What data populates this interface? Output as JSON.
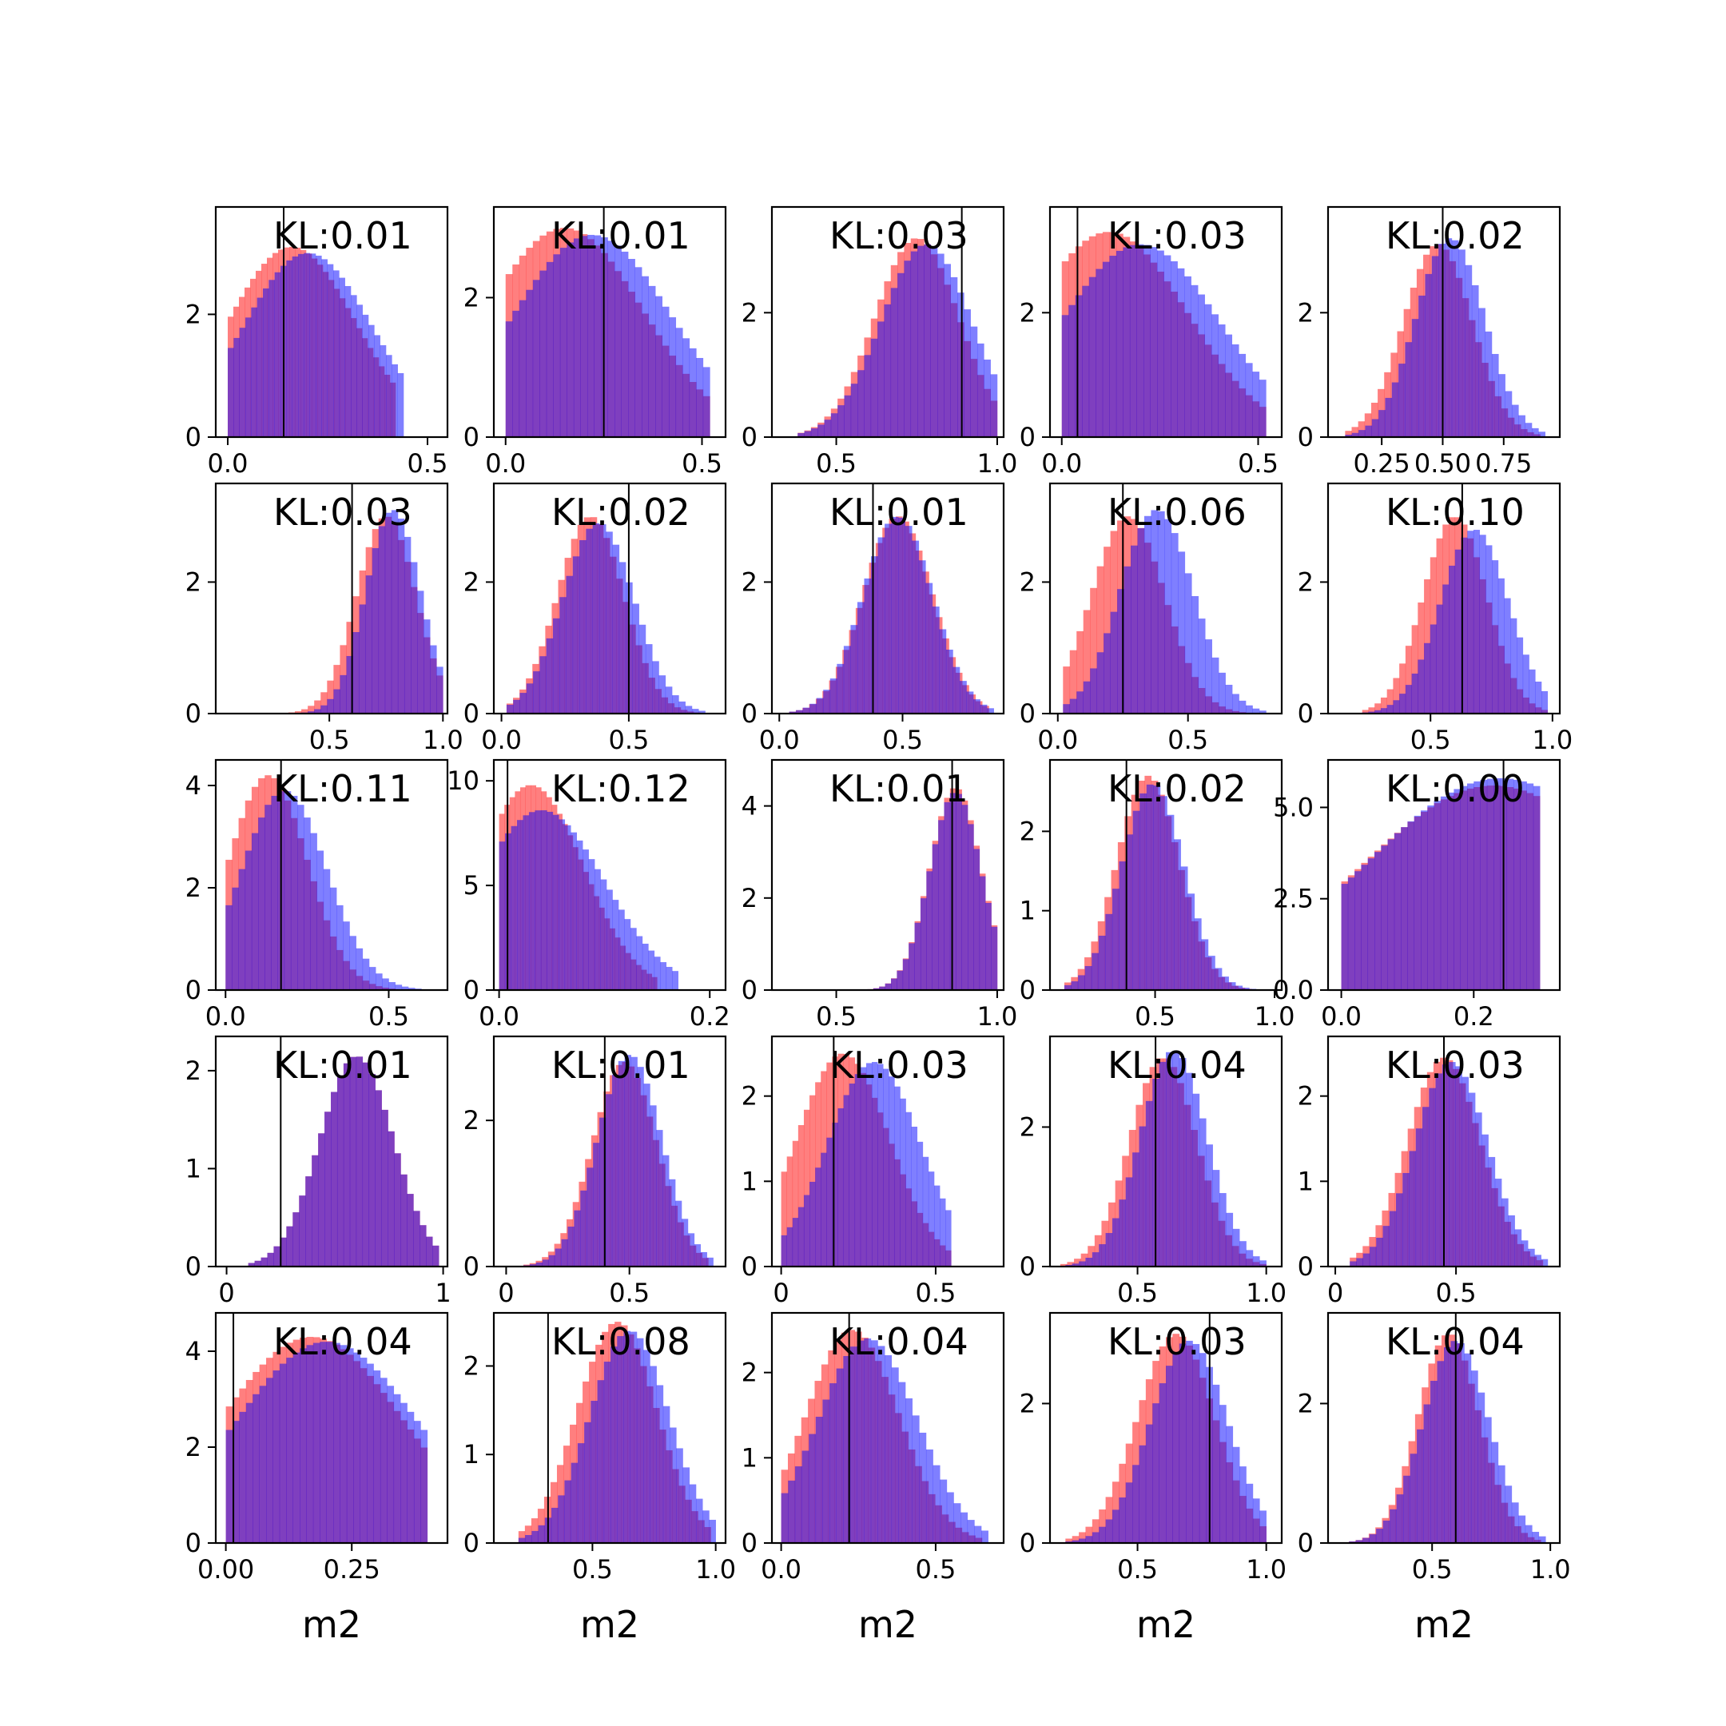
{
  "chart_data": {
    "type": "histogram-grid",
    "rows": 5,
    "cols": 5,
    "colors": {
      "series_a": "#ff0000",
      "series_b": "#0000ff",
      "overlap": "#7f3fbf",
      "marker_line": "#000000"
    },
    "bin_count": 30,
    "x_axis_label": "m2",
    "panels": [
      {
        "label": "KL:0.01",
        "xlim": [
          -0.03,
          0.55
        ],
        "ylim": [
          0,
          3.75
        ],
        "xticks": [
          0,
          0.5
        ],
        "xtick_labels": [
          "0.0",
          "0.5"
        ],
        "yticks": [
          0,
          2
        ],
        "marker": 0.14,
        "a": {
          "lo": 0,
          "hi": 0.42,
          "peak": 0.16,
          "spread": 0.16,
          "scale": 3.1,
          "bins": 30
        },
        "b": {
          "lo": 0,
          "hi": 0.44,
          "peak": 0.2,
          "spread": 0.16,
          "scale": 3.0,
          "bins": 30
        }
      },
      {
        "label": "KL:0.01",
        "xlim": [
          -0.03,
          0.56
        ],
        "ylim": [
          0,
          3.3
        ],
        "xticks": [
          0,
          0.5
        ],
        "xtick_labels": [
          "0.0",
          "0.5"
        ],
        "yticks": [
          0,
          2
        ],
        "marker": 0.25,
        "a": {
          "lo": 0,
          "hi": 0.52,
          "peak": 0.15,
          "spread": 0.2,
          "scale": 3.0,
          "bins": 30
        },
        "b": {
          "lo": 0,
          "hi": 0.52,
          "peak": 0.22,
          "spread": 0.2,
          "scale": 2.9,
          "bins": 30
        }
      },
      {
        "label": "KL:0.03",
        "xlim": [
          0.3,
          1.02
        ],
        "ylim": [
          0,
          3.7
        ],
        "xticks": [
          0.5,
          1.0
        ],
        "xtick_labels": [
          "0.5",
          "1.0"
        ],
        "yticks": [
          0,
          2
        ],
        "marker": 0.89,
        "a": {
          "lo": 0.38,
          "hi": 1.0,
          "peak": 0.75,
          "spread": 0.13,
          "scale": 3.2,
          "bins": 30
        },
        "b": {
          "lo": 0.38,
          "hi": 1.0,
          "peak": 0.78,
          "spread": 0.14,
          "scale": 3.1,
          "bins": 30
        }
      },
      {
        "label": "KL:0.03",
        "xlim": [
          -0.03,
          0.56
        ],
        "ylim": [
          0,
          3.7
        ],
        "xticks": [
          0,
          0.5
        ],
        "xtick_labels": [
          "0.0",
          "0.5"
        ],
        "yticks": [
          0,
          2
        ],
        "marker": 0.04,
        "a": {
          "lo": 0,
          "hi": 0.52,
          "peak": 0.12,
          "spread": 0.2,
          "scale": 3.3,
          "bins": 30
        },
        "b": {
          "lo": 0,
          "hi": 0.52,
          "peak": 0.2,
          "spread": 0.2,
          "scale": 3.1,
          "bins": 30
        }
      },
      {
        "label": "KL:0.02",
        "xlim": [
          0.03,
          0.98
        ],
        "ylim": [
          0,
          3.7
        ],
        "xticks": [
          0.25,
          0.5,
          0.75
        ],
        "xtick_labels": [
          "0.25",
          "0.50",
          "0.75"
        ],
        "yticks": [
          0,
          2
        ],
        "marker": 0.5,
        "a": {
          "lo": 0.1,
          "hi": 0.9,
          "peak": 0.48,
          "spread": 0.14,
          "scale": 3.1,
          "bins": 30
        },
        "b": {
          "lo": 0.1,
          "hi": 0.92,
          "peak": 0.53,
          "spread": 0.14,
          "scale": 3.2,
          "bins": 30
        }
      },
      {
        "label": "KL:0.03",
        "xlim": [
          0,
          1.02
        ],
        "ylim": [
          0,
          3.5
        ],
        "xticks": [
          0.5,
          1.0
        ],
        "xtick_labels": [
          "0.5",
          "1.0"
        ],
        "yticks": [
          0,
          2
        ],
        "marker": 0.6,
        "a": {
          "lo": 0.15,
          "hi": 1.0,
          "peak": 0.75,
          "spread": 0.13,
          "scale": 3.0,
          "bins": 30
        },
        "b": {
          "lo": 0.15,
          "hi": 1.0,
          "peak": 0.78,
          "spread": 0.12,
          "scale": 3.1,
          "bins": 30
        }
      },
      {
        "label": "KL:0.02",
        "xlim": [
          -0.03,
          0.88
        ],
        "ylim": [
          0,
          3.5
        ],
        "xticks": [
          0,
          0.5
        ],
        "xtick_labels": [
          "0.0",
          "0.5"
        ],
        "yticks": [
          0,
          2
        ],
        "marker": 0.5,
        "a": {
          "lo": 0.02,
          "hi": 0.78,
          "peak": 0.35,
          "spread": 0.13,
          "scale": 3.0,
          "bins": 30
        },
        "b": {
          "lo": 0.02,
          "hi": 0.8,
          "peak": 0.38,
          "spread": 0.14,
          "scale": 2.9,
          "bins": 30
        }
      },
      {
        "label": "KL:0.01",
        "xlim": [
          -0.03,
          0.91
        ],
        "ylim": [
          0,
          3.5
        ],
        "xticks": [
          0,
          0.5
        ],
        "xtick_labels": [
          "0.0",
          "0.5"
        ],
        "yticks": [
          0,
          2
        ],
        "marker": 0.38,
        "a": {
          "lo": 0.04,
          "hi": 0.85,
          "peak": 0.48,
          "spread": 0.14,
          "scale": 3.0,
          "bins": 30
        },
        "b": {
          "lo": 0.04,
          "hi": 0.87,
          "peak": 0.48,
          "spread": 0.14,
          "scale": 3.0,
          "bins": 30
        }
      },
      {
        "label": "KL:0.06",
        "xlim": [
          -0.03,
          0.86
        ],
        "ylim": [
          0,
          3.5
        ],
        "xticks": [
          0,
          0.5
        ],
        "xtick_labels": [
          "0.0",
          "0.5"
        ],
        "yticks": [
          0,
          2
        ],
        "marker": 0.25,
        "a": {
          "lo": 0.02,
          "hi": 0.8,
          "peak": 0.27,
          "spread": 0.14,
          "scale": 3.0,
          "bins": 30
        },
        "b": {
          "lo": 0.02,
          "hi": 0.8,
          "peak": 0.38,
          "spread": 0.14,
          "scale": 3.1,
          "bins": 30
        }
      },
      {
        "label": "KL:0.10",
        "xlim": [
          0.08,
          1.03
        ],
        "ylim": [
          0,
          3.5
        ],
        "xticks": [
          0.5,
          1.0
        ],
        "xtick_labels": [
          "0.5",
          "1.0"
        ],
        "yticks": [
          0,
          2
        ],
        "marker": 0.63,
        "a": {
          "lo": 0.22,
          "hi": 0.98,
          "peak": 0.6,
          "spread": 0.13,
          "scale": 3.0,
          "bins": 30
        },
        "b": {
          "lo": 0.22,
          "hi": 0.98,
          "peak": 0.68,
          "spread": 0.14,
          "scale": 2.8,
          "bins": 30
        }
      },
      {
        "label": "KL:0.11",
        "xlim": [
          -0.03,
          0.68
        ],
        "ylim": [
          0,
          4.5
        ],
        "xticks": [
          0,
          0.5
        ],
        "xtick_labels": [
          "0.0",
          "0.5"
        ],
        "yticks": [
          0,
          2,
          4
        ],
        "marker": 0.17,
        "a": {
          "lo": 0,
          "hi": 0.6,
          "peak": 0.13,
          "spread": 0.12,
          "scale": 4.2,
          "bins": 30
        },
        "b": {
          "lo": 0,
          "hi": 0.6,
          "peak": 0.18,
          "spread": 0.13,
          "scale": 3.9,
          "bins": 30
        }
      },
      {
        "label": "KL:0.12",
        "xlim": [
          -0.005,
          0.215
        ],
        "ylim": [
          0,
          11
        ],
        "xticks": [
          0,
          0.2
        ],
        "xtick_labels": [
          "0.0",
          "0.2"
        ],
        "yticks": [
          0,
          5,
          10
        ],
        "marker": 0.008,
        "a": {
          "lo": 0,
          "hi": 0.15,
          "peak": 0.03,
          "spread": 0.05,
          "scale": 9.8,
          "bins": 30
        },
        "b": {
          "lo": 0,
          "hi": 0.17,
          "peak": 0.04,
          "spread": 0.06,
          "scale": 8.6,
          "bins": 30
        }
      },
      {
        "label": "KL:0.01",
        "xlim": [
          0.3,
          1.02
        ],
        "ylim": [
          0,
          5
        ],
        "xticks": [
          0.5,
          1.0
        ],
        "xtick_labels": [
          "0.5",
          "1.0"
        ],
        "yticks": [
          0,
          2,
          4
        ],
        "marker": 0.86,
        "a": {
          "lo": 0.45,
          "hi": 1.0,
          "peak": 0.87,
          "spread": 0.08,
          "scale": 4.4,
          "bins": 30
        },
        "b": {
          "lo": 0.45,
          "hi": 1.0,
          "peak": 0.87,
          "spread": 0.08,
          "scale": 4.3,
          "bins": 30
        }
      },
      {
        "label": "KL:0.02",
        "xlim": [
          0.06,
          1.03
        ],
        "ylim": [
          0,
          2.9
        ],
        "xticks": [
          0.5,
          1.0
        ],
        "xtick_labels": [
          "0.5",
          "1.0"
        ],
        "yticks": [
          0,
          1,
          2
        ],
        "marker": 0.38,
        "a": {
          "lo": 0.12,
          "hi": 0.96,
          "peak": 0.47,
          "spread": 0.13,
          "scale": 2.7,
          "bins": 30
        },
        "b": {
          "lo": 0.12,
          "hi": 0.98,
          "peak": 0.49,
          "spread": 0.13,
          "scale": 2.6,
          "bins": 30
        }
      },
      {
        "label": "KL:0.00",
        "xlim": [
          -0.02,
          0.33
        ],
        "ylim": [
          0,
          6.3
        ],
        "xticks": [
          0,
          0.2
        ],
        "xtick_labels": [
          "0.0",
          "0.2"
        ],
        "yticks": [
          0,
          2.5,
          5.0
        ],
        "ytick_labels": [
          "0.0",
          "2.5",
          "5.0"
        ],
        "marker": 0.245,
        "a": {
          "lo": 0,
          "hi": 0.3,
          "peak": 0.23,
          "spread": 0.2,
          "scale": 5.6,
          "bins": 30
        },
        "b": {
          "lo": 0,
          "hi": 0.3,
          "peak": 0.24,
          "spread": 0.2,
          "scale": 5.8,
          "bins": 30
        }
      },
      {
        "label": "KL:0.01",
        "xlim": [
          -0.05,
          1.02
        ],
        "ylim": [
          0,
          2.35
        ],
        "xticks": [
          0,
          1
        ],
        "xtick_labels": [
          "0",
          "1"
        ],
        "yticks": [
          0,
          1,
          2
        ],
        "marker": 0.25,
        "a": {
          "lo": 0.1,
          "hi": 0.98,
          "peak": 0.6,
          "spread": 0.17,
          "scale": 2.15,
          "bins": 30
        },
        "b": {
          "lo": 0.1,
          "hi": 0.98,
          "peak": 0.6,
          "spread": 0.17,
          "scale": 2.15,
          "bins": 30
        }
      },
      {
        "label": "KL:0.01",
        "xlim": [
          -0.05,
          0.89
        ],
        "ylim": [
          0,
          3.15
        ],
        "xticks": [
          0,
          0.5
        ],
        "xtick_labels": [
          "0",
          "0.5"
        ],
        "yticks": [
          0,
          2
        ],
        "marker": 0.4,
        "a": {
          "lo": 0.07,
          "hi": 0.82,
          "peak": 0.48,
          "spread": 0.13,
          "scale": 2.8,
          "bins": 30
        },
        "b": {
          "lo": 0.07,
          "hi": 0.84,
          "peak": 0.5,
          "spread": 0.13,
          "scale": 2.9,
          "bins": 30
        }
      },
      {
        "label": "KL:0.03",
        "xlim": [
          -0.03,
          0.72
        ],
        "ylim": [
          0,
          2.7
        ],
        "xticks": [
          0,
          0.5
        ],
        "xtick_labels": [
          "0",
          "0.5"
        ],
        "yticks": [
          0,
          1,
          2
        ],
        "marker": 0.17,
        "a": {
          "lo": 0,
          "hi": 0.55,
          "peak": 0.2,
          "spread": 0.15,
          "scale": 2.5,
          "bins": 30
        },
        "b": {
          "lo": 0,
          "hi": 0.55,
          "peak": 0.3,
          "spread": 0.15,
          "scale": 2.4,
          "bins": 30
        }
      },
      {
        "label": "KL:0.04",
        "xlim": [
          0.16,
          1.06
        ],
        "ylim": [
          0,
          3.3
        ],
        "xticks": [
          0.5,
          1.0
        ],
        "xtick_labels": [
          "0.5",
          "1.0"
        ],
        "yticks": [
          0,
          2
        ],
        "marker": 0.57,
        "a": {
          "lo": 0.2,
          "hi": 1.0,
          "peak": 0.6,
          "spread": 0.13,
          "scale": 3.0,
          "bins": 30
        },
        "b": {
          "lo": 0.22,
          "hi": 1.0,
          "peak": 0.64,
          "spread": 0.13,
          "scale": 3.1,
          "bins": 30
        }
      },
      {
        "label": "KL:0.03",
        "xlim": [
          -0.03,
          0.93
        ],
        "ylim": [
          0,
          2.7
        ],
        "xticks": [
          0,
          0.5
        ],
        "xtick_labels": [
          "0",
          "0.5"
        ],
        "yticks": [
          0,
          1,
          2
        ],
        "marker": 0.45,
        "a": {
          "lo": 0.06,
          "hi": 0.86,
          "peak": 0.45,
          "spread": 0.15,
          "scale": 2.45,
          "bins": 30
        },
        "b": {
          "lo": 0.06,
          "hi": 0.88,
          "peak": 0.48,
          "spread": 0.15,
          "scale": 2.4,
          "bins": 30
        }
      },
      {
        "label": "KL:0.04",
        "xlim": [
          -0.02,
          0.44
        ],
        "ylim": [
          0,
          4.8
        ],
        "xticks": [
          0,
          0.25
        ],
        "xtick_labels": [
          "0.00",
          "0.25"
        ],
        "yticks": [
          0,
          2,
          4
        ],
        "marker": 0.015,
        "a": {
          "lo": 0,
          "hi": 0.4,
          "peak": 0.17,
          "spread": 0.18,
          "scale": 4.3,
          "bins": 30
        },
        "b": {
          "lo": 0,
          "hi": 0.4,
          "peak": 0.2,
          "spread": 0.18,
          "scale": 4.2,
          "bins": 30
        }
      },
      {
        "label": "KL:0.08",
        "xlim": [
          0.1,
          1.04
        ],
        "ylim": [
          0,
          2.6
        ],
        "xticks": [
          0.5,
          1.0
        ],
        "xtick_labels": [
          "0.5",
          "1.0"
        ],
        "yticks": [
          0,
          1,
          2
        ],
        "marker": 0.32,
        "a": {
          "lo": 0.2,
          "hi": 0.98,
          "peak": 0.6,
          "spread": 0.16,
          "scale": 2.5,
          "bins": 30
        },
        "b": {
          "lo": 0.2,
          "hi": 1.0,
          "peak": 0.65,
          "spread": 0.16,
          "scale": 2.4,
          "bins": 30
        }
      },
      {
        "label": "KL:0.04",
        "xlim": [
          -0.03,
          0.72
        ],
        "ylim": [
          0,
          2.7
        ],
        "xticks": [
          0,
          0.5
        ],
        "xtick_labels": [
          "0.0",
          "0.5"
        ],
        "yticks": [
          0,
          1,
          2
        ],
        "marker": 0.22,
        "a": {
          "lo": 0,
          "hi": 0.65,
          "peak": 0.23,
          "spread": 0.15,
          "scale": 2.5,
          "bins": 30
        },
        "b": {
          "lo": 0,
          "hi": 0.67,
          "peak": 0.28,
          "spread": 0.16,
          "scale": 2.4,
          "bins": 30
        }
      },
      {
        "label": "KL:0.03",
        "xlim": [
          0.16,
          1.06
        ],
        "ylim": [
          0,
          3.3
        ],
        "xticks": [
          0.5,
          1.0
        ],
        "xtick_labels": [
          "0.5",
          "1.0"
        ],
        "yticks": [
          0,
          2
        ],
        "marker": 0.78,
        "a": {
          "lo": 0.22,
          "hi": 1.0,
          "peak": 0.65,
          "spread": 0.15,
          "scale": 3.0,
          "bins": 30
        },
        "b": {
          "lo": 0.22,
          "hi": 1.0,
          "peak": 0.7,
          "spread": 0.15,
          "scale": 2.9,
          "bins": 30
        }
      },
      {
        "label": "KL:0.04",
        "xlim": [
          0.06,
          1.04
        ],
        "ylim": [
          0,
          3.3
        ],
        "xticks": [
          0.5,
          1.0
        ],
        "xtick_labels": [
          "0.5",
          "1.0"
        ],
        "yticks": [
          0,
          2
        ],
        "marker": 0.6,
        "a": {
          "lo": 0.12,
          "hi": 0.96,
          "peak": 0.57,
          "spread": 0.13,
          "scale": 3.0,
          "bins": 30
        },
        "b": {
          "lo": 0.12,
          "hi": 0.98,
          "peak": 0.6,
          "spread": 0.14,
          "scale": 2.9,
          "bins": 30
        }
      }
    ]
  }
}
